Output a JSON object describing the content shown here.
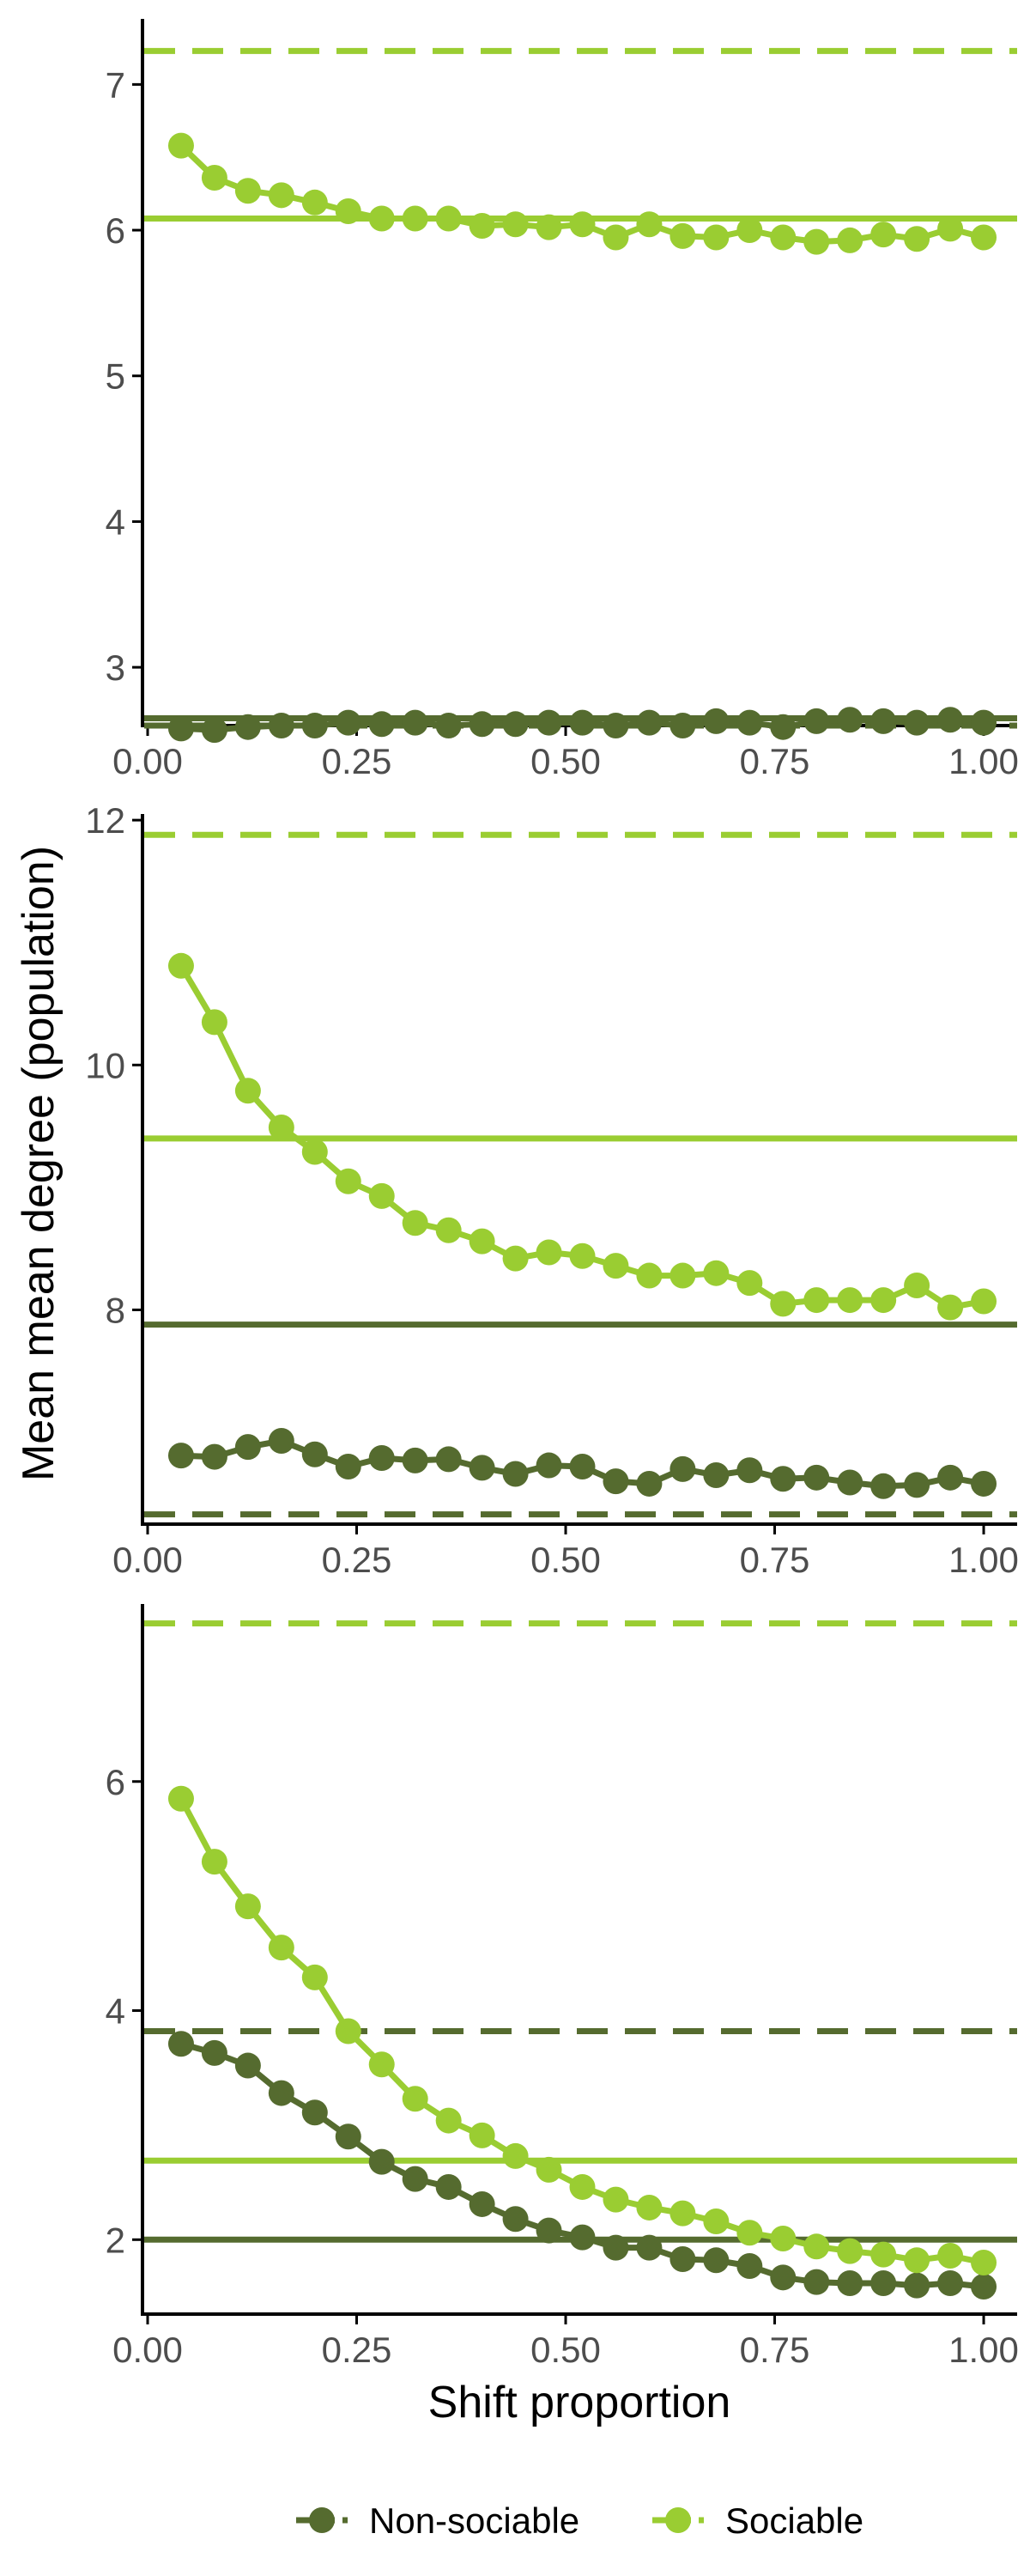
{
  "colors": {
    "non_sociable": "#556b2f",
    "sociable": "#9acd32",
    "axis": "#000000",
    "tick_label": "#4d4d4d"
  },
  "ylabel": "Mean mean degree (population)",
  "xlabel": "Shift proportion",
  "legend": {
    "position": "bottom",
    "entries": [
      {
        "key": "non_sociable",
        "label": "Non-sociable"
      },
      {
        "key": "sociable",
        "label": "Sociable"
      }
    ]
  },
  "chart_data": [
    {
      "type": "line",
      "xlim": [
        0,
        1.04
      ],
      "ylim": [
        2.6,
        7.45
      ],
      "x_ticks": [
        "0.00",
        "0.25",
        "0.50",
        "0.75",
        "1.00"
      ],
      "y_ticks": [
        "3",
        "4",
        "5",
        "6",
        "7"
      ],
      "x": [
        0.04,
        0.08,
        0.12,
        0.16,
        0.2,
        0.24,
        0.28,
        0.32,
        0.36,
        0.4,
        0.44,
        0.48,
        0.52,
        0.56,
        0.6,
        0.64,
        0.68,
        0.72,
        0.76,
        0.8,
        0.84,
        0.88,
        0.92,
        0.96,
        1.0
      ],
      "series": [
        {
          "key": "non_sociable",
          "name": "Non-sociable",
          "values": [
            2.58,
            2.57,
            2.59,
            2.6,
            2.6,
            2.62,
            2.61,
            2.62,
            2.6,
            2.61,
            2.61,
            2.62,
            2.62,
            2.6,
            2.62,
            2.6,
            2.63,
            2.62,
            2.59,
            2.63,
            2.64,
            2.63,
            2.62,
            2.64,
            2.62
          ]
        },
        {
          "key": "sociable",
          "name": "Sociable",
          "values": [
            6.58,
            6.36,
            6.27,
            6.24,
            6.19,
            6.13,
            6.08,
            6.08,
            6.08,
            6.03,
            6.04,
            6.02,
            6.04,
            5.95,
            6.04,
            5.96,
            5.95,
            6.0,
            5.95,
            5.92,
            5.93,
            5.97,
            5.94,
            6.01,
            5.95
          ]
        }
      ],
      "reference_lines": [
        {
          "key": "sociable",
          "style": "dashed",
          "y": 7.23
        },
        {
          "key": "sociable",
          "style": "solid",
          "y": 6.08
        },
        {
          "key": "non_sociable",
          "style": "solid",
          "y": 2.65
        },
        {
          "key": "non_sociable",
          "style": "dashed",
          "y": 2.6
        }
      ]
    },
    {
      "type": "line",
      "xlim": [
        0,
        1.04
      ],
      "ylim": [
        6.25,
        12.05
      ],
      "x_ticks": [
        "0.00",
        "0.25",
        "0.50",
        "0.75",
        "1.00"
      ],
      "y_ticks": [
        "8",
        "10",
        "12"
      ],
      "x": [
        0.04,
        0.08,
        0.12,
        0.16,
        0.2,
        0.24,
        0.28,
        0.32,
        0.36,
        0.4,
        0.44,
        0.48,
        0.52,
        0.56,
        0.6,
        0.64,
        0.68,
        0.72,
        0.76,
        0.8,
        0.84,
        0.88,
        0.92,
        0.96,
        1.0
      ],
      "series": [
        {
          "key": "non_sociable",
          "name": "Non-sociable",
          "values": [
            6.81,
            6.8,
            6.88,
            6.93,
            6.82,
            6.72,
            6.79,
            6.77,
            6.78,
            6.71,
            6.66,
            6.73,
            6.72,
            6.6,
            6.58,
            6.7,
            6.65,
            6.69,
            6.62,
            6.63,
            6.59,
            6.56,
            6.57,
            6.63,
            6.58
          ]
        },
        {
          "key": "sociable",
          "name": "Sociable",
          "values": [
            10.81,
            10.35,
            9.79,
            9.49,
            9.29,
            9.05,
            8.93,
            8.71,
            8.65,
            8.56,
            8.42,
            8.47,
            8.44,
            8.36,
            8.28,
            8.28,
            8.3,
            8.22,
            8.05,
            8.08,
            8.08,
            8.08,
            8.2,
            8.02,
            8.07
          ]
        }
      ],
      "reference_lines": [
        {
          "key": "sociable",
          "style": "dashed",
          "y": 11.88
        },
        {
          "key": "sociable",
          "style": "solid",
          "y": 9.4
        },
        {
          "key": "non_sociable",
          "style": "solid",
          "y": 7.88
        },
        {
          "key": "non_sociable",
          "style": "dashed",
          "y": 6.33
        }
      ]
    },
    {
      "type": "line",
      "xlim": [
        0,
        1.04
      ],
      "ylim": [
        1.35,
        7.55
      ],
      "x_ticks": [
        "0.00",
        "0.25",
        "0.50",
        "0.75",
        "1.00"
      ],
      "y_ticks": [
        "2",
        "4",
        "6"
      ],
      "x": [
        0.04,
        0.08,
        0.12,
        0.16,
        0.2,
        0.24,
        0.28,
        0.32,
        0.36,
        0.4,
        0.44,
        0.48,
        0.52,
        0.56,
        0.6,
        0.64,
        0.68,
        0.72,
        0.76,
        0.8,
        0.84,
        0.88,
        0.92,
        0.96,
        1.0
      ],
      "series": [
        {
          "key": "non_sociable",
          "name": "Non-sociable",
          "values": [
            3.71,
            3.63,
            3.52,
            3.28,
            3.11,
            2.9,
            2.68,
            2.53,
            2.46,
            2.31,
            2.18,
            2.08,
            2.02,
            1.93,
            1.93,
            1.83,
            1.82,
            1.77,
            1.67,
            1.63,
            1.62,
            1.62,
            1.6,
            1.62,
            1.59
          ]
        },
        {
          "key": "sociable",
          "name": "Sociable",
          "values": [
            5.85,
            5.3,
            4.91,
            4.55,
            4.29,
            3.82,
            3.53,
            3.23,
            3.04,
            2.91,
            2.73,
            2.61,
            2.46,
            2.35,
            2.28,
            2.23,
            2.16,
            2.06,
            2.01,
            1.94,
            1.9,
            1.87,
            1.82,
            1.86,
            1.8
          ]
        }
      ],
      "reference_lines": [
        {
          "key": "sociable",
          "style": "dashed",
          "y": 7.38
        },
        {
          "key": "non_sociable",
          "style": "dashed",
          "y": 3.82
        },
        {
          "key": "sociable",
          "style": "solid",
          "y": 2.69
        },
        {
          "key": "non_sociable",
          "style": "solid",
          "y": 2.0
        }
      ]
    }
  ]
}
